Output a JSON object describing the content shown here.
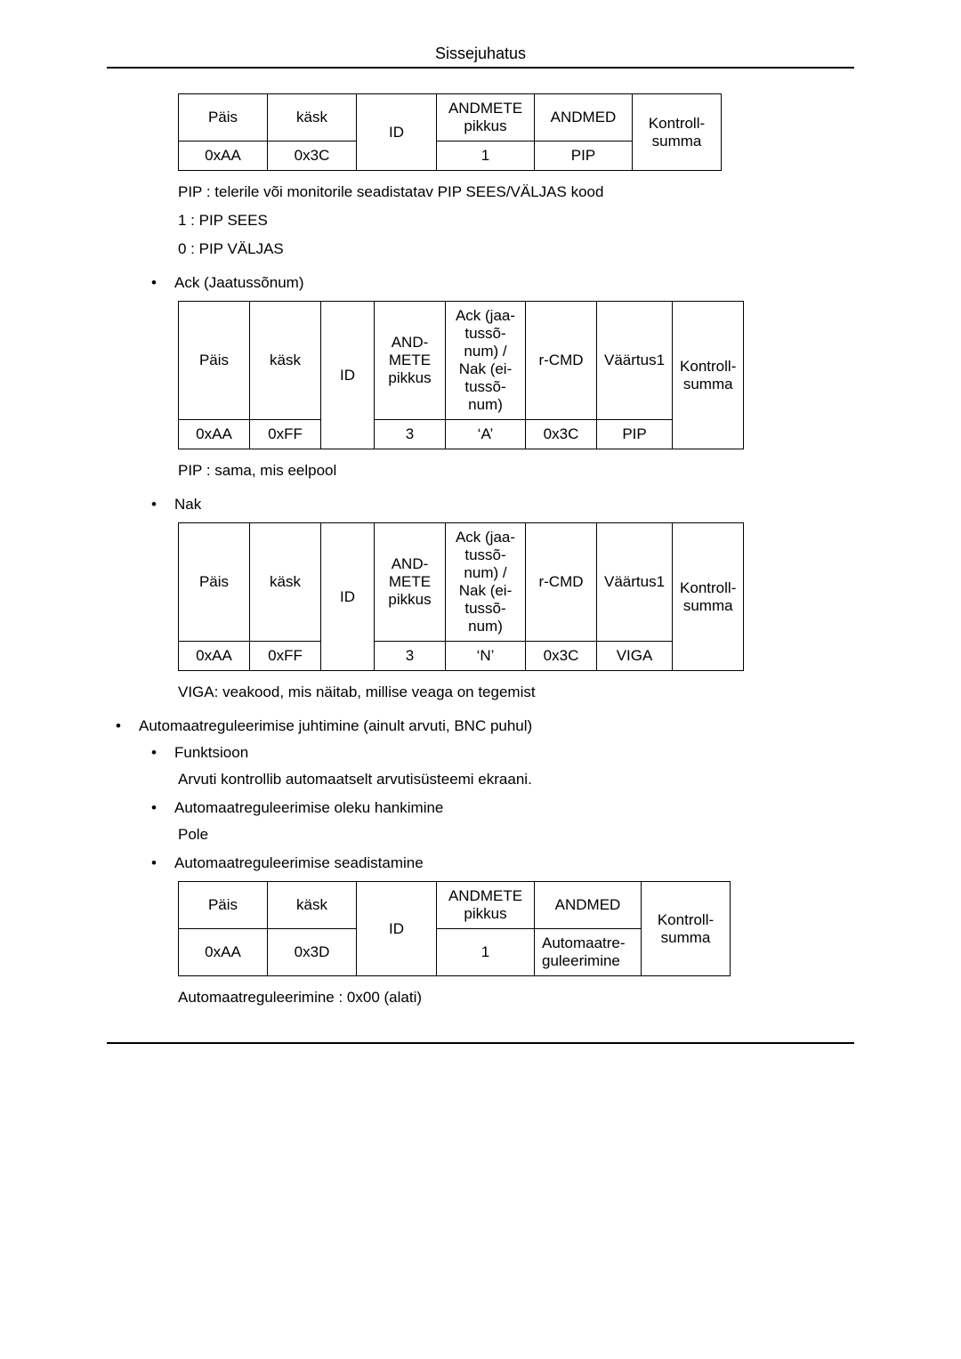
{
  "header": {
    "title": "Sissejuhatus"
  },
  "table1": {
    "cols": {
      "pais": "Päis",
      "kask": "käsk",
      "id": "ID",
      "andmete_pikkus": "ANDMETE pikkus",
      "andmed": "ANDMED",
      "kontroll": "Kontroll-summa"
    },
    "row": {
      "pais": "0xAA",
      "kask": "0x3C",
      "id": "",
      "andmete_pikkus": "1",
      "andmed": "PIP",
      "kontroll": ""
    },
    "col_widths": {
      "pais": 100,
      "kask": 100,
      "id": 90,
      "andmete_pikkus": 110,
      "andmed": 110,
      "kontroll": 100
    }
  },
  "pip_desc": "PIP : telerile või monitorile seadistatav PIP SEES/VÄLJAS kood",
  "pip_on": "1 : PIP SEES",
  "pip_off": "0 : PIP VÄLJAS",
  "bullet_ack": "Ack (Jaatussõnum)",
  "table2": {
    "cols": {
      "pais": "Päis",
      "kask": "käsk",
      "id": "ID",
      "andmete_pikkus": "AND-METE pikkus",
      "acknak": "Ack (jaa-tussõ-num) / Nak (ei-tussõ-num)",
      "rcmd": "r-CMD",
      "vaartus1": "Väärtus1",
      "kontroll": "Kontroll-summa"
    },
    "row": {
      "pais": "0xAA",
      "kask": "0xFF",
      "id": "",
      "andmete_pikkus": "3",
      "acknak": "‘A’",
      "rcmd": "0x3C",
      "vaartus1": "PIP",
      "kontroll": ""
    },
    "col_widths": {
      "pais": 80,
      "kask": 80,
      "id": 60,
      "andmete_pikkus": 80,
      "acknak": 90,
      "rcmd": 80,
      "vaartus1": 80,
      "kontroll": 80
    }
  },
  "pip_same": "PIP : sama, mis eelpool",
  "bullet_nak": "Nak",
  "table3": {
    "cols": {
      "pais": "Päis",
      "kask": "käsk",
      "id": "ID",
      "andmete_pikkus": "AND-METE pikkus",
      "acknak": "Ack (jaa-tussõ-num) / Nak (ei-tussõ-num)",
      "rcmd": "r-CMD",
      "vaartus1": "Väärtus1",
      "kontroll": "Kontroll-summa"
    },
    "row": {
      "pais": "0xAA",
      "kask": "0xFF",
      "id": "",
      "andmete_pikkus": "3",
      "acknak": "‘N’",
      "rcmd": "0x3C",
      "vaartus1": "VIGA",
      "kontroll": ""
    },
    "col_widths": {
      "pais": 80,
      "kask": 80,
      "id": 60,
      "andmete_pikkus": 80,
      "acknak": 90,
      "rcmd": 80,
      "vaartus1": 80,
      "kontroll": 80
    }
  },
  "viga_desc": "VIGA: veakood, mis näitab, millise veaga on tegemist",
  "section_auto": "Automaatreguleerimise juhtimine (ainult arvuti, BNC puhul)",
  "sub_funktsioon": "Funktsioon",
  "funk_desc": "Arvuti kontrollib automaatselt arvutisüsteemi ekraani.",
  "sub_oleku": "Automaatreguleerimise oleku hankimine",
  "oleku_desc": "Pole",
  "sub_seadist": "Automaatreguleerimise seadistamine",
  "table4": {
    "cols": {
      "pais": "Päis",
      "kask": "käsk",
      "id": "ID",
      "andmete_pikkus": "ANDMETE pikkus",
      "andmed": "ANDMED",
      "kontroll": "Kontroll-summa"
    },
    "row": {
      "pais": "0xAA",
      "kask": "0x3D",
      "id": "",
      "andmete_pikkus": "1",
      "andmed": "Automaatre-guleerimine",
      "kontroll": ""
    },
    "col_widths": {
      "pais": 100,
      "kask": 100,
      "id": 90,
      "andmete_pikkus": 110,
      "andmed": 120,
      "kontroll": 100
    }
  },
  "auto_desc": "Automaatreguleerimine : 0x00 (alati)"
}
